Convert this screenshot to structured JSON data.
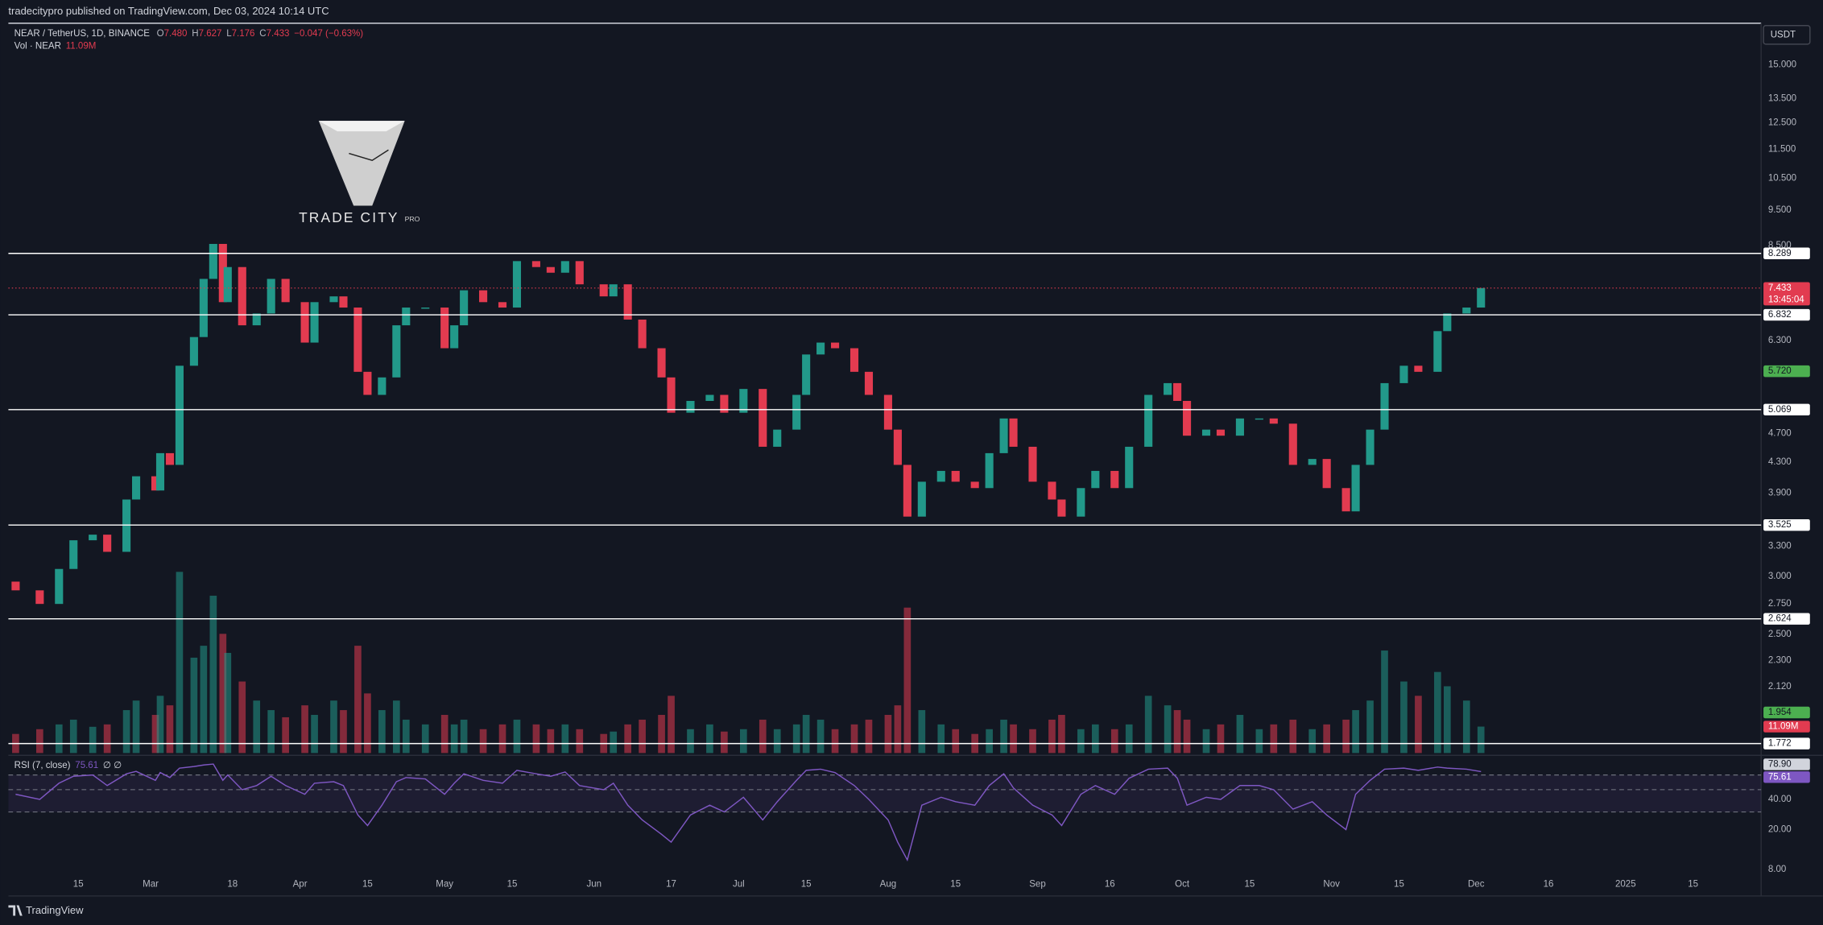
{
  "header": "tradecitypro published on TradingView.com, Dec 03, 2024 10:14 UTC",
  "footer": "TradingView",
  "watermark": {
    "name": "TRADE CITY",
    "suffix": "PRO"
  },
  "chart_data": {
    "type": "candlestick",
    "legend": {
      "symbol": "NEAR / TetherUS, 1D, BINANCE",
      "ohlc": [
        {
          "key": "O",
          "text": "7.480"
        },
        {
          "key": "H",
          "text": "7.627"
        },
        {
          "key": "L",
          "text": "7.176"
        },
        {
          "key": "C",
          "text": "7.433"
        }
      ],
      "change": "−0.047 (−0.63%)"
    },
    "currency": "USDT",
    "x": [
      1,
      6,
      10,
      13,
      17,
      20,
      24,
      26,
      30,
      31,
      33,
      35,
      38,
      40,
      42,
      44,
      45,
      48,
      51,
      54,
      57,
      61,
      63,
      67,
      69,
      72,
      74,
      77,
      80,
      82,
      86,
      90,
      92,
      94,
      98,
      102,
      105,
      109,
      112,
      115,
      118,
      123,
      125,
      128,
      131,
      135,
      137,
      141,
      145,
      148,
      152,
      156,
      159,
      163,
      165,
      168,
      171,
      175,
      178,
      182,
      184,
      186,
      189,
      193,
      196,
      200,
      203,
      206,
      208,
      212,
      216,
      218,
      222,
      225,
      229,
      232,
      236,
      240,
      242,
      244,
      248,
      251,
      255,
      259,
      262,
      266,
      270,
      273,
      277,
      279,
      282,
      285,
      289,
      292,
      296,
      298,
      302,
      305
    ],
    "open": 2.95,
    "closes": [
      2.87,
      2.75,
      3.07,
      3.36,
      3.42,
      3.24,
      3.82,
      4.11,
      3.93,
      4.42,
      4.26,
      5.82,
      6.37,
      7.65,
      8.54,
      7.11,
      7.94,
      6.61,
      6.86,
      7.65,
      7.11,
      6.26,
      7.11,
      7.24,
      6.99,
      5.71,
      5.31,
      5.61,
      6.61,
      6.99,
      6.99,
      6.15,
      6.61,
      7.38,
      7.11,
      6.99,
      8.09,
      7.94,
      7.8,
      8.09,
      7.52,
      7.24,
      7.52,
      6.73,
      6.15,
      5.61,
      5.02,
      5.21,
      5.31,
      5.02,
      5.41,
      4.51,
      4.76,
      5.31,
      6.03,
      6.26,
      6.15,
      5.71,
      5.31,
      4.76,
      4.26,
      3.62,
      4.04,
      4.18,
      4.04,
      3.96,
      4.42,
      4.93,
      4.51,
      4.04,
      3.82,
      3.62,
      3.96,
      4.18,
      3.96,
      4.51,
      5.31,
      5.51,
      5.21,
      4.67,
      4.76,
      4.67,
      4.93,
      4.93,
      4.85,
      4.26,
      4.34,
      3.96,
      3.68,
      4.26,
      4.76,
      5.51,
      5.82,
      5.71,
      6.49,
      6.86,
      6.99,
      7.433
    ],
    "up_color": "#22998a",
    "down_color": "#e23b50",
    "log_scale": true,
    "ylim": [
      1.72,
      16.98
    ],
    "yticks": [
      {
        "value": 15,
        "label": "15.000"
      },
      {
        "value": 13.5,
        "label": "13.500"
      },
      {
        "value": 12.5,
        "label": "12.500"
      },
      {
        "value": 11.5,
        "label": "11.500"
      },
      {
        "value": 10.5,
        "label": "10.500"
      },
      {
        "value": 9.5,
        "label": "9.500"
      },
      {
        "value": 8.5,
        "label": "8.500"
      },
      {
        "value": 6.3,
        "label": "6.300"
      },
      {
        "value": 4.7,
        "label": "4.700"
      },
      {
        "value": 4.3,
        "label": "4.300"
      },
      {
        "value": 3.9,
        "label": "3.900"
      },
      {
        "value": 3.3,
        "label": "3.300"
      },
      {
        "value": 3,
        "label": "3.000"
      },
      {
        "value": 2.75,
        "label": "2.750"
      },
      {
        "value": 2.5,
        "label": "2.500"
      },
      {
        "value": 2.3,
        "label": "2.300"
      },
      {
        "value": 2.12,
        "label": "2.120"
      }
    ],
    "xlim": [
      -0.5,
      362.4
    ],
    "xticks": [
      {
        "value": 14,
        "label": "15"
      },
      {
        "value": 29,
        "label": "Mar"
      },
      {
        "value": 46,
        "label": "18"
      },
      {
        "value": 60,
        "label": "Apr"
      },
      {
        "value": 74,
        "label": "15"
      },
      {
        "value": 90,
        "label": "May"
      },
      {
        "value": 104,
        "label": "15"
      },
      {
        "value": 121,
        "label": "Jun"
      },
      {
        "value": 137,
        "label": "17"
      },
      {
        "value": 151,
        "label": "Jul"
      },
      {
        "value": 165,
        "label": "15"
      },
      {
        "value": 182,
        "label": "Aug"
      },
      {
        "value": 196,
        "label": "15"
      },
      {
        "value": 213,
        "label": "Sep"
      },
      {
        "value": 228,
        "label": "16"
      },
      {
        "value": 243,
        "label": "Oct"
      },
      {
        "value": 257,
        "label": "15"
      },
      {
        "value": 274,
        "label": "Nov"
      },
      {
        "value": 288,
        "label": "15"
      },
      {
        "value": 304,
        "label": "Dec"
      },
      {
        "value": 319,
        "label": "16"
      },
      {
        "value": 335,
        "label": "2025"
      },
      {
        "value": 349,
        "label": "15"
      }
    ],
    "levels": [
      8.289,
      6.832,
      5.069,
      3.525,
      2.624,
      1.772
    ],
    "level_color": "#ffffff",
    "last_price": 7.433,
    "countdown": "13:45:04",
    "axis_labels": [
      {
        "value": 5.72,
        "label": "5.720",
        "color": "#4caf50"
      },
      {
        "value": 1.954,
        "label": "1.954",
        "color": "#4caf50"
      }
    ],
    "volume": {
      "name": "Vol · NEAR",
      "last_label": "11.09M",
      "vlim": [
        0,
        78
      ],
      "values": [
        8,
        10,
        12,
        14,
        11,
        12,
        18,
        22,
        16,
        24,
        20,
        76,
        40,
        45,
        66,
        50,
        42,
        30,
        22,
        18,
        15,
        20,
        16,
        22,
        18,
        45,
        25,
        18,
        22,
        14,
        12,
        16,
        12,
        14,
        10,
        12,
        14,
        12,
        10,
        12,
        10,
        8,
        9,
        12,
        14,
        16,
        24,
        10,
        12,
        9,
        10,
        14,
        10,
        12,
        16,
        14,
        10,
        12,
        14,
        16,
        20,
        61,
        18,
        12,
        10,
        8,
        10,
        14,
        12,
        10,
        14,
        16,
        10,
        12,
        10,
        12,
        24,
        20,
        18,
        14,
        10,
        12,
        16,
        10,
        12,
        14,
        10,
        12,
        14,
        18,
        22,
        43,
        30,
        24,
        34,
        28,
        22,
        11.09
      ]
    },
    "rsi": {
      "name": "RSI (7, close)",
      "last": 75.61,
      "extra": "∅ ∅",
      "color": "#7e57c2",
      "log_scale": true,
      "ylim": [
        4.49,
        107
      ],
      "yticks": [
        {
          "value": 40,
          "label": "40.00"
        },
        {
          "value": 20,
          "label": "20.00"
        },
        {
          "value": 8,
          "label": "8.00"
        }
      ],
      "bands": [
        70,
        50,
        30
      ],
      "ma": {
        "value": 78.9,
        "label": "78.90"
      },
      "values": [
        45,
        40,
        58,
        68,
        70,
        55,
        72,
        76,
        62,
        74,
        66,
        82,
        85,
        88,
        90,
        62,
        70,
        50,
        55,
        68,
        55,
        45,
        58,
        60,
        55,
        28,
        22,
        35,
        60,
        66,
        64,
        45,
        58,
        72,
        62,
        58,
        78,
        72,
        68,
        75,
        55,
        50,
        58,
        35,
        25,
        18,
        15,
        28,
        35,
        30,
        42,
        25,
        38,
        62,
        78,
        80,
        74,
        55,
        40,
        25,
        15,
        10,
        35,
        42,
        38,
        35,
        55,
        72,
        52,
        35,
        28,
        22,
        45,
        55,
        45,
        65,
        80,
        82,
        65,
        35,
        42,
        40,
        55,
        55,
        50,
        32,
        38,
        28,
        20,
        45,
        62,
        80,
        82,
        78,
        84,
        82,
        80,
        75.61
      ]
    }
  }
}
